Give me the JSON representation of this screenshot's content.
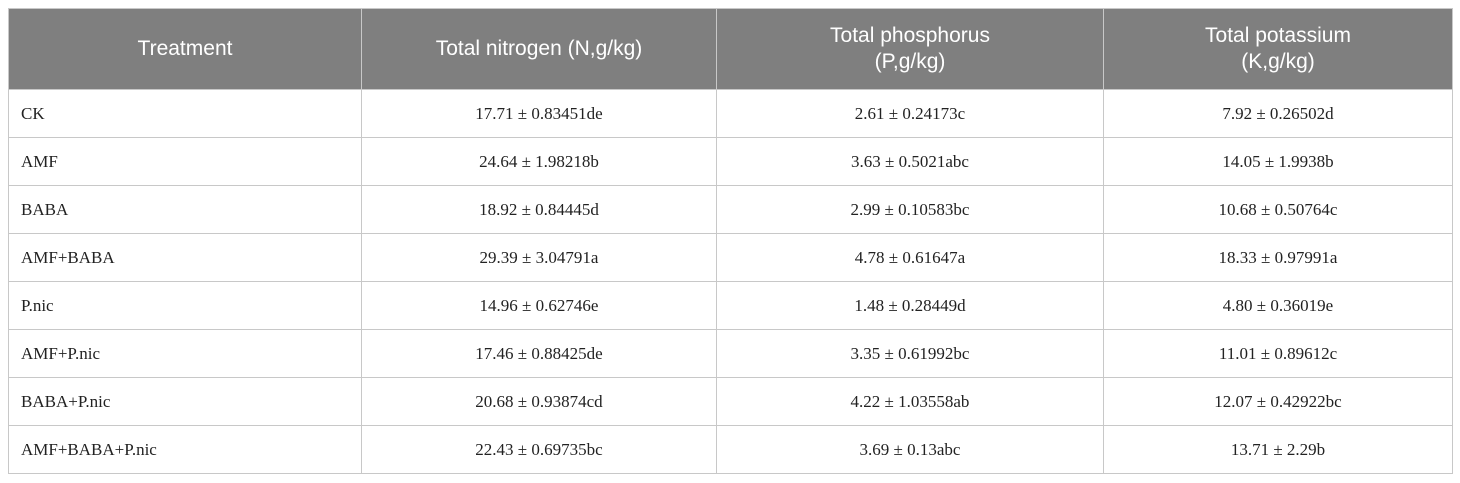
{
  "table": {
    "header": [
      "Treatment",
      "Total nitrogen (N,g/kg)",
      "Total phosphorus (P,g/kg)",
      "Total potassium (K,g/kg)"
    ],
    "rows": [
      [
        "CK",
        "17.71 ± 0.83451de",
        "2.61 ± 0.24173c",
        "7.92 ± 0.26502d"
      ],
      [
        "AMF",
        "24.64 ± 1.98218b",
        "3.63 ± 0.5021abc",
        "14.05 ± 1.9938b"
      ],
      [
        "BABA",
        "18.92 ± 0.84445d",
        "2.99 ± 0.10583bc",
        "10.68 ± 0.50764c"
      ],
      [
        "AMF+BABA",
        "29.39 ± 3.04791a",
        "4.78 ± 0.61647a",
        "18.33 ± 0.97991a"
      ],
      [
        "P.nic",
        "14.96 ± 0.62746e",
        "1.48 ± 0.28449d",
        "4.80 ± 0.36019e"
      ],
      [
        "AMF+P.nic",
        "17.46 ± 0.88425de",
        "3.35 ± 0.61992bc",
        "11.01 ± 0.89612c"
      ],
      [
        "BABA+P.nic",
        "20.68 ± 0.93874cd",
        "4.22 ± 1.03558ab",
        "12.07 ± 0.42922bc"
      ],
      [
        "AMF+BABA+P.nic",
        "22.43 ± 0.69735bc",
        "3.69 ± 0.13abc",
        "13.71 ± 2.29b"
      ]
    ]
  }
}
